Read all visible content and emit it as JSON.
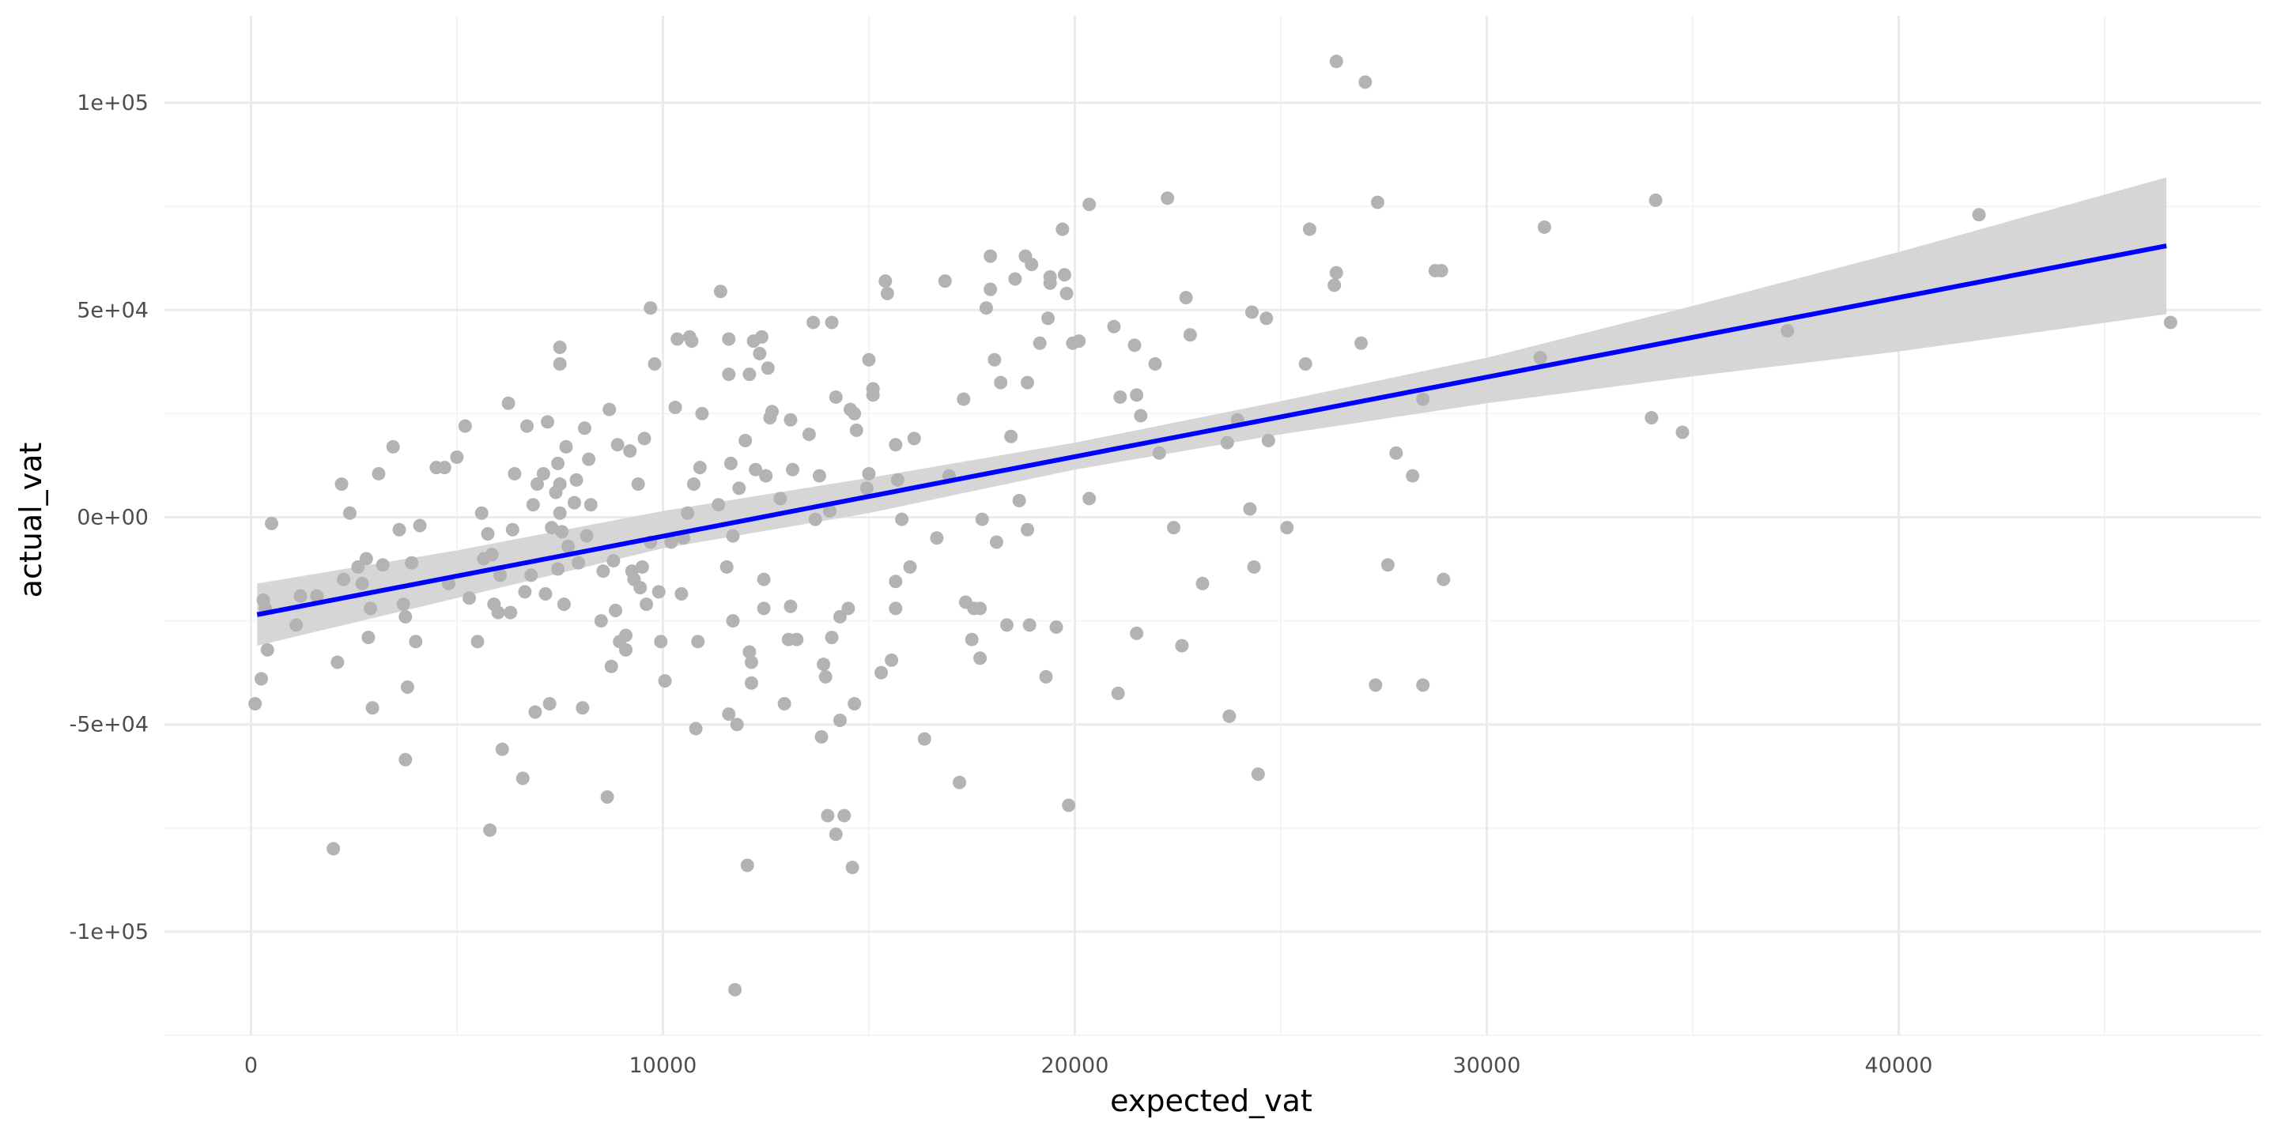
{
  "chart_data": {
    "type": "scatter",
    "xlabel": "expected_vat",
    "ylabel": "actual_vat",
    "xlim": [
      -2100,
      48800
    ],
    "ylim": [
      -125000,
      121000
    ],
    "x_ticks": [
      0,
      10000,
      20000,
      30000,
      40000
    ],
    "x_tick_labels": [
      "0",
      "10000",
      "20000",
      "30000",
      "40000"
    ],
    "y_ticks": [
      -100000,
      -50000,
      0,
      50000,
      100000
    ],
    "y_tick_labels": [
      "-1e+05",
      "-5e+04",
      "0e+00",
      "5e+04",
      "1e+05"
    ],
    "grid": true,
    "legend": "none",
    "colors": {
      "points": "#b3b3b3",
      "line": "#0000ff",
      "ribbon": "#d6d6d6",
      "grid_major": "#ebebeb",
      "grid_minor": "#f4f4f4"
    },
    "series": [
      {
        "kind": "points",
        "points": [
          [
            100,
            -45000
          ],
          [
            250,
            -39000
          ],
          [
            300,
            -20000
          ],
          [
            350,
            -22000
          ],
          [
            400,
            -32000
          ],
          [
            500,
            -1500
          ],
          [
            1100,
            -26000
          ],
          [
            1200,
            -19000
          ],
          [
            1600,
            -19000
          ],
          [
            2000,
            -80000
          ],
          [
            2100,
            -35000
          ],
          [
            2200,
            8000
          ],
          [
            2250,
            -15000
          ],
          [
            2400,
            1000
          ],
          [
            2600,
            -12000
          ],
          [
            2700,
            -16000
          ],
          [
            2800,
            -10000
          ],
          [
            2850,
            -29000
          ],
          [
            2900,
            -22000
          ],
          [
            2950,
            -46000
          ],
          [
            3100,
            10500
          ],
          [
            3200,
            -11500
          ],
          [
            3450,
            17000
          ],
          [
            3600,
            -3000
          ],
          [
            3700,
            -21000
          ],
          [
            3750,
            -24000
          ],
          [
            3750,
            -58500
          ],
          [
            3800,
            -41000
          ],
          [
            3900,
            -11000
          ],
          [
            4000,
            -30000
          ],
          [
            4100,
            -2000
          ],
          [
            4500,
            12000
          ],
          [
            4700,
            12000
          ],
          [
            4800,
            -16000
          ],
          [
            5000,
            14500
          ],
          [
            5200,
            22000
          ],
          [
            5300,
            -19500
          ],
          [
            5500,
            -30000
          ],
          [
            5600,
            1000
          ],
          [
            5650,
            -10000
          ],
          [
            5750,
            -4000
          ],
          [
            5800,
            -75500
          ],
          [
            5850,
            -9000
          ],
          [
            5900,
            -21000
          ],
          [
            6000,
            -23000
          ],
          [
            6050,
            -14000
          ],
          [
            6100,
            -56000
          ],
          [
            6250,
            27500
          ],
          [
            6300,
            -23000
          ],
          [
            6350,
            -3000
          ],
          [
            6400,
            10500
          ],
          [
            6600,
            -63000
          ],
          [
            6650,
            -18000
          ],
          [
            6700,
            22000
          ],
          [
            6800,
            -14000
          ],
          [
            6850,
            3000
          ],
          [
            6900,
            -47000
          ],
          [
            6950,
            8000
          ],
          [
            7100,
            10500
          ],
          [
            7150,
            -18500
          ],
          [
            7200,
            23000
          ],
          [
            7250,
            -45000
          ],
          [
            7300,
            -2500
          ],
          [
            7400,
            6000
          ],
          [
            7450,
            13000
          ],
          [
            7500,
            8000
          ],
          [
            7500,
            1000
          ],
          [
            7450,
            -12500
          ],
          [
            7500,
            41000
          ],
          [
            7500,
            37000
          ],
          [
            7550,
            -3500
          ],
          [
            7600,
            -21000
          ],
          [
            7650,
            17000
          ],
          [
            7700,
            -7000
          ],
          [
            7850,
            3500
          ],
          [
            7900,
            9000
          ],
          [
            7950,
            -11000
          ],
          [
            8050,
            -46000
          ],
          [
            8100,
            21500
          ],
          [
            8150,
            -4500
          ],
          [
            8200,
            14000
          ],
          [
            8250,
            3000
          ],
          [
            8500,
            -25000
          ],
          [
            8550,
            -13000
          ],
          [
            8650,
            -67500
          ],
          [
            8700,
            26000
          ],
          [
            8750,
            -36000
          ],
          [
            8800,
            -10500
          ],
          [
            8850,
            -22500
          ],
          [
            8900,
            17500
          ],
          [
            8950,
            -30000
          ],
          [
            9100,
            -28500
          ],
          [
            9100,
            -32000
          ],
          [
            9200,
            16000
          ],
          [
            9250,
            -13000
          ],
          [
            9300,
            -15000
          ],
          [
            9400,
            8000
          ],
          [
            9450,
            -17000
          ],
          [
            9500,
            -12000
          ],
          [
            9550,
            19000
          ],
          [
            9600,
            -21000
          ],
          [
            9700,
            -6000
          ],
          [
            9700,
            50500
          ],
          [
            9800,
            37000
          ],
          [
            9900,
            -18000
          ],
          [
            9950,
            -30000
          ],
          [
            10050,
            -39500
          ],
          [
            10200,
            -6000
          ],
          [
            10300,
            26500
          ],
          [
            10350,
            43000
          ],
          [
            10450,
            -18500
          ],
          [
            10500,
            -5000
          ],
          [
            10600,
            1000
          ],
          [
            10650,
            43500
          ],
          [
            10700,
            42500
          ],
          [
            10750,
            8000
          ],
          [
            10800,
            -51000
          ],
          [
            10850,
            -30000
          ],
          [
            10900,
            12000
          ],
          [
            10950,
            25000
          ],
          [
            11350,
            3000
          ],
          [
            11400,
            54500
          ],
          [
            11550,
            -12000
          ],
          [
            11600,
            43000
          ],
          [
            11600,
            34500
          ],
          [
            11650,
            13000
          ],
          [
            11600,
            -47500
          ],
          [
            11700,
            -25000
          ],
          [
            11700,
            -4500
          ],
          [
            11750,
            -114000
          ],
          [
            11800,
            -50000
          ],
          [
            11850,
            7000
          ],
          [
            12000,
            18500
          ],
          [
            12050,
            -84000
          ],
          [
            12100,
            34500
          ],
          [
            12100,
            -32500
          ],
          [
            12150,
            -35000
          ],
          [
            12150,
            -40000
          ],
          [
            12200,
            42500
          ],
          [
            12250,
            11500
          ],
          [
            12350,
            39500
          ],
          [
            12400,
            43500
          ],
          [
            12450,
            -15000
          ],
          [
            12450,
            -22000
          ],
          [
            12500,
            10000
          ],
          [
            12550,
            36000
          ],
          [
            12600,
            24000
          ],
          [
            12650,
            25500
          ],
          [
            12850,
            4500
          ],
          [
            12950,
            -45000
          ],
          [
            13050,
            -29500
          ],
          [
            13100,
            -21500
          ],
          [
            13100,
            23500
          ],
          [
            13150,
            11500
          ],
          [
            13250,
            -29500
          ],
          [
            13550,
            20000
          ],
          [
            13650,
            47000
          ],
          [
            13700,
            -500
          ],
          [
            13800,
            10000
          ],
          [
            13850,
            -53000
          ],
          [
            13900,
            -35500
          ],
          [
            13950,
            -38500
          ],
          [
            14000,
            -72000
          ],
          [
            14050,
            1500
          ],
          [
            14100,
            47000
          ],
          [
            14100,
            -29000
          ],
          [
            14200,
            -76500
          ],
          [
            14200,
            29000
          ],
          [
            14300,
            -49000
          ],
          [
            14300,
            -24000
          ],
          [
            14400,
            -72000
          ],
          [
            14500,
            -22000
          ],
          [
            14550,
            26000
          ],
          [
            14650,
            25000
          ],
          [
            14650,
            -45000
          ],
          [
            14600,
            -84500
          ],
          [
            14700,
            21000
          ],
          [
            14950,
            7000
          ],
          [
            15000,
            10500
          ],
          [
            15000,
            38000
          ],
          [
            15100,
            31000
          ],
          [
            15100,
            29500
          ],
          [
            15300,
            -37500
          ],
          [
            15400,
            57000
          ],
          [
            15450,
            54000
          ],
          [
            15550,
            -34500
          ],
          [
            15650,
            17500
          ],
          [
            15650,
            -15500
          ],
          [
            15650,
            -22000
          ],
          [
            15700,
            9000
          ],
          [
            15800,
            -500
          ],
          [
            16000,
            -12000
          ],
          [
            16100,
            19000
          ],
          [
            16350,
            -53500
          ],
          [
            16650,
            -5000
          ],
          [
            16850,
            57000
          ],
          [
            16950,
            10000
          ],
          [
            17200,
            -64000
          ],
          [
            17300,
            28500
          ],
          [
            17350,
            -20500
          ],
          [
            17500,
            -29500
          ],
          [
            17550,
            -22000
          ],
          [
            17700,
            -34000
          ],
          [
            17700,
            -22000
          ],
          [
            17750,
            -500
          ],
          [
            17850,
            50500
          ],
          [
            17950,
            55000
          ],
          [
            17950,
            63000
          ],
          [
            18050,
            38000
          ],
          [
            18100,
            -6000
          ],
          [
            18200,
            32500
          ],
          [
            18350,
            -26000
          ],
          [
            18450,
            19500
          ],
          [
            18550,
            57500
          ],
          [
            18650,
            4000
          ],
          [
            18800,
            63000
          ],
          [
            18850,
            -3000
          ],
          [
            18850,
            32500
          ],
          [
            18900,
            -26000
          ],
          [
            18950,
            61000
          ],
          [
            19150,
            42000
          ],
          [
            19300,
            -38500
          ],
          [
            19350,
            48000
          ],
          [
            19400,
            56500
          ],
          [
            19400,
            58000
          ],
          [
            19550,
            -26500
          ],
          [
            19700,
            69500
          ],
          [
            19750,
            58500
          ],
          [
            19800,
            54000
          ],
          [
            19850,
            -69500
          ],
          [
            19950,
            42000
          ],
          [
            20100,
            42500
          ],
          [
            20350,
            75500
          ],
          [
            20350,
            4500
          ],
          [
            20950,
            46000
          ],
          [
            21050,
            -42500
          ],
          [
            21100,
            29000
          ],
          [
            21450,
            41500
          ],
          [
            21500,
            29500
          ],
          [
            21500,
            -28000
          ],
          [
            21600,
            24500
          ],
          [
            21950,
            37000
          ],
          [
            22050,
            15500
          ],
          [
            22250,
            77000
          ],
          [
            22400,
            -2500
          ],
          [
            22600,
            -31000
          ],
          [
            22700,
            53000
          ],
          [
            22800,
            44000
          ],
          [
            23100,
            -16000
          ],
          [
            23700,
            18000
          ],
          [
            23750,
            -48000
          ],
          [
            23950,
            23500
          ],
          [
            24250,
            2000
          ],
          [
            24300,
            49500
          ],
          [
            24350,
            -12000
          ],
          [
            24450,
            -62000
          ],
          [
            24650,
            48000
          ],
          [
            24700,
            18500
          ],
          [
            25150,
            -2500
          ],
          [
            25600,
            37000
          ],
          [
            25700,
            69500
          ],
          [
            26300,
            56000
          ],
          [
            26350,
            59000
          ],
          [
            26350,
            110000
          ],
          [
            26950,
            42000
          ],
          [
            27050,
            105000
          ],
          [
            27300,
            -40500
          ],
          [
            27350,
            76000
          ],
          [
            27600,
            -11500
          ],
          [
            27800,
            15500
          ],
          [
            28200,
            10000
          ],
          [
            28450,
            -40500
          ],
          [
            28450,
            28500
          ],
          [
            28750,
            59500
          ],
          [
            28900,
            59500
          ],
          [
            28950,
            -15000
          ],
          [
            31300,
            38500
          ],
          [
            31400,
            70000
          ],
          [
            34000,
            24000
          ],
          [
            34100,
            76500
          ],
          [
            34750,
            20500
          ],
          [
            37300,
            45000
          ],
          [
            41950,
            73000
          ],
          [
            46600,
            47000
          ]
        ]
      },
      {
        "kind": "fit",
        "method": "linear",
        "line": [
          [
            150,
            -23500
          ],
          [
            46500,
            65500
          ]
        ],
        "ribbon_upper": [
          [
            150,
            -16000
          ],
          [
            5000,
            -8000
          ],
          [
            10000,
            1500
          ],
          [
            15000,
            9500
          ],
          [
            20000,
            18000
          ],
          [
            25000,
            28000
          ],
          [
            30000,
            38500
          ],
          [
            35000,
            51000
          ],
          [
            40000,
            64000
          ],
          [
            46500,
            82000
          ]
        ],
        "ribbon_lower": [
          [
            150,
            -31000
          ],
          [
            5000,
            -19500
          ],
          [
            10000,
            -7500
          ],
          [
            15000,
            1000
          ],
          [
            20000,
            11500
          ],
          [
            25000,
            20000
          ],
          [
            30000,
            27500
          ],
          [
            35000,
            34000
          ],
          [
            40000,
            40000
          ],
          [
            46500,
            49000
          ]
        ]
      }
    ]
  }
}
